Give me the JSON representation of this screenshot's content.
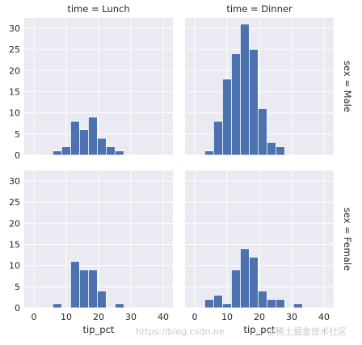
{
  "chart_data": {
    "type": "bar",
    "x_variable": "tip_pct",
    "row_variable": "sex",
    "col_variable": "time",
    "xlabel": "tip_pct",
    "xticks": [
      0,
      10,
      20,
      30,
      40
    ],
    "yticks": [
      0,
      5,
      10,
      15,
      20,
      25,
      30
    ],
    "xlim": [
      -3,
      43
    ],
    "ylim": [
      0,
      32.5
    ],
    "bin_edges": [
      3.1,
      5.85,
      8.6,
      11.35,
      14.1,
      16.85,
      19.6,
      22.35,
      25.1,
      27.85,
      30.6,
      33.35,
      36.1,
      38.85,
      41.6
    ],
    "grid": true,
    "bar_color": "#4c72b0",
    "background_color": "#eaeaf2",
    "facets": [
      {
        "row_title": "",
        "col_title": "time = Lunch",
        "values": [
          0,
          1,
          2,
          8,
          6,
          9,
          4,
          2,
          1,
          0,
          0,
          0,
          0,
          0
        ]
      },
      {
        "row_title": "sex = Male",
        "col_title": "time = Dinner",
        "values": [
          1,
          8,
          18,
          24,
          31,
          25,
          11,
          3,
          2,
          0,
          0,
          0,
          0,
          0
        ]
      },
      {
        "row_title": "",
        "col_title": "",
        "values": [
          0,
          1,
          0,
          11,
          9,
          9,
          4,
          0,
          1,
          0,
          0,
          0,
          0,
          0
        ]
      },
      {
        "row_title": "sex = Female",
        "col_title": "",
        "values": [
          2,
          3,
          1,
          9,
          14,
          12,
          4,
          2,
          2,
          0,
          1,
          0,
          0,
          0
        ]
      }
    ]
  },
  "watermark": {
    "left_text": "https://blog.csdn.ne",
    "right_text": "@稀土掘金技术社区"
  }
}
